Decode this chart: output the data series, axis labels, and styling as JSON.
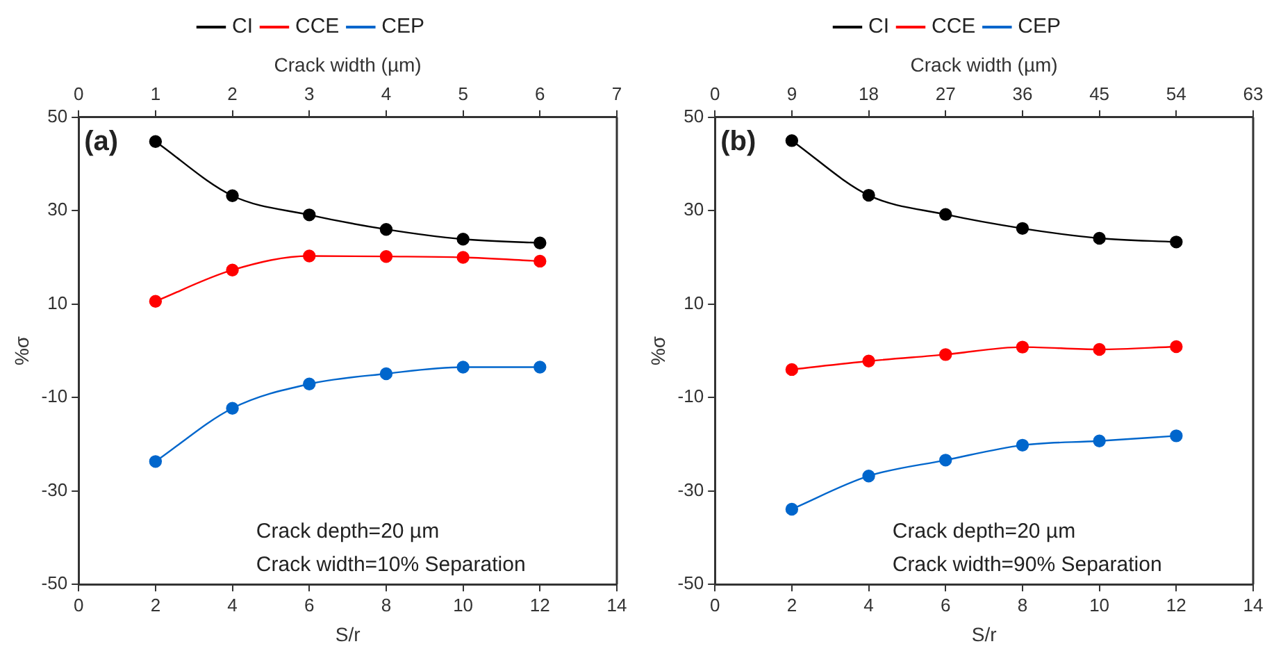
{
  "chart_data": [
    {
      "type": "line",
      "xlabel": "S/r",
      "ylabel": "%σ",
      "x2label": "Crack width (µm)",
      "x": [
        2,
        4,
        6,
        8,
        10,
        12
      ],
      "xlim": [
        0,
        14
      ],
      "xticks": [
        0,
        2,
        4,
        6,
        8,
        10,
        12,
        14
      ],
      "x2lim": [
        0,
        7
      ],
      "x2ticks": [
        0,
        1,
        2,
        3,
        4,
        5,
        6,
        7
      ],
      "ylim": [
        -50,
        50
      ],
      "yticks": [
        -50,
        -30,
        -10,
        10,
        30,
        50
      ],
      "grid": false,
      "legend": "top",
      "marker": "circle",
      "line_style": "solid",
      "annotations": [
        "(a)",
        "Crack depth=20 µm",
        "Crack width=10% Separation"
      ],
      "series": [
        {
          "name": "CI",
          "color": "#000000",
          "values": [
            44.8,
            33.2,
            29.1,
            26.0,
            23.9,
            23.1
          ]
        },
        {
          "name": "CCE",
          "color": "#ff0000",
          "values": [
            10.6,
            17.3,
            20.3,
            20.2,
            20.0,
            19.2
          ]
        },
        {
          "name": "CEP",
          "color": "#0066cc",
          "values": [
            -23.7,
            -12.3,
            -7.1,
            -4.9,
            -3.5,
            -3.5
          ]
        }
      ]
    },
    {
      "type": "line",
      "xlabel": "S/r",
      "ylabel": "%σ",
      "x2label": "Crack width (µm)",
      "x": [
        2,
        4,
        6,
        8,
        10,
        12
      ],
      "xlim": [
        0,
        14
      ],
      "xticks": [
        0,
        2,
        4,
        6,
        8,
        10,
        12,
        14
      ],
      "x2lim": [
        0,
        63
      ],
      "x2ticks": [
        0,
        9,
        18,
        27,
        36,
        45,
        54,
        63
      ],
      "ylim": [
        -50,
        50
      ],
      "yticks": [
        -50,
        -30,
        -10,
        10,
        30,
        50
      ],
      "grid": false,
      "legend": "top",
      "marker": "circle",
      "line_style": "solid",
      "annotations": [
        "(b)",
        "Crack depth=20 µm",
        "Crack width=90% Separation"
      ],
      "series": [
        {
          "name": "CI",
          "color": "#000000",
          "values": [
            45.0,
            33.3,
            29.2,
            26.2,
            24.1,
            23.3
          ]
        },
        {
          "name": "CCE",
          "color": "#ff0000",
          "values": [
            -4.0,
            -2.2,
            -0.8,
            0.8,
            0.3,
            0.9
          ]
        },
        {
          "name": "CEP",
          "color": "#0066cc",
          "values": [
            -33.9,
            -26.8,
            -23.4,
            -20.2,
            -19.3,
            -18.2
          ]
        }
      ]
    }
  ]
}
